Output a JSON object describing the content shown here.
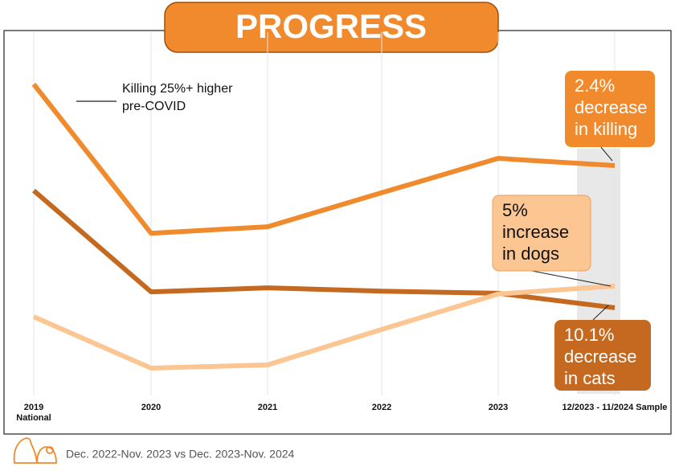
{
  "chart_data": {
    "type": "line",
    "title": "PROGRESS",
    "categories": [
      "2019 National",
      "2020",
      "2021",
      "2022",
      "2023",
      "12/2023 - 11/2024 Sample"
    ],
    "series": [
      {
        "color": "#f08a2c",
        "values": [
          85.6,
          44.4,
          46.2,
          55.6,
          65.1,
          63.1
        ]
      },
      {
        "color": "#c4691f",
        "values": [
          56.2,
          28.2,
          29.3,
          28.4,
          27.8,
          23.8
        ]
      },
      {
        "color": "#fcc692",
        "values": [
          21.3,
          7.1,
          8.0,
          17.8,
          27.6,
          29.8
        ]
      }
    ],
    "ylim": [
      0,
      100
    ],
    "grid": true,
    "annotations": [
      {
        "lines": [
          "Killing 25%+ higher",
          "pre-COVID"
        ]
      },
      {
        "lines": [
          "2.4%",
          "decrease",
          "in killing"
        ],
        "color": "#f08a2c"
      },
      {
        "lines": [
          "5%",
          "increase",
          "in dogs"
        ],
        "color": "#fcc692"
      },
      {
        "lines": [
          "10.1%",
          "decrease",
          "in cats"
        ],
        "color": "#c4691f"
      }
    ],
    "footnote": "Dec. 2022-Nov. 2023 vs Dec. 2023-Nov. 2024"
  }
}
